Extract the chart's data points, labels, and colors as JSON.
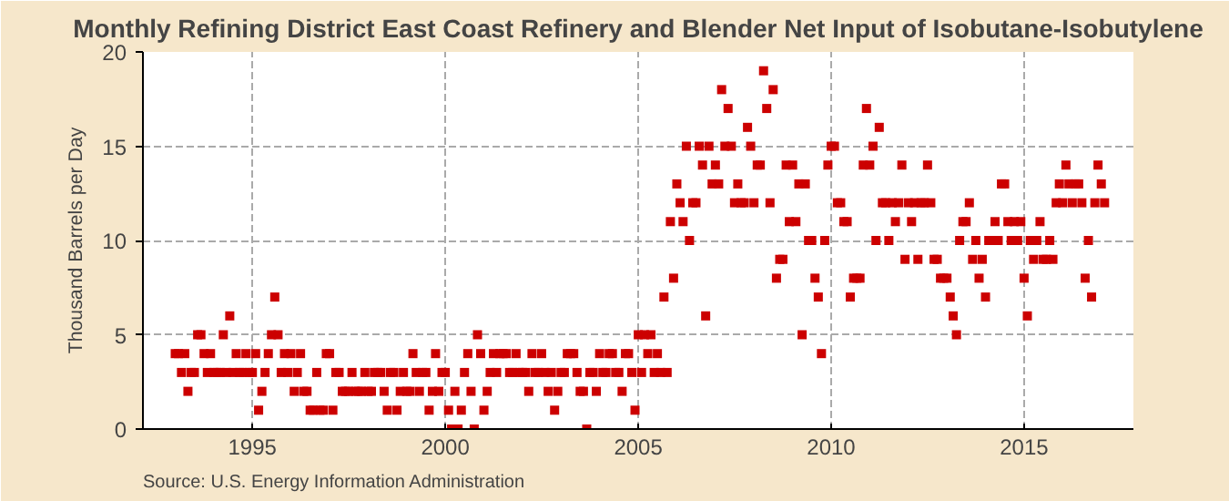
{
  "chart_data": {
    "type": "scatter",
    "title": "Monthly Refining District East Coast Refinery and Blender Net Input of Isobutane-Isobutylene",
    "ylabel": "Thousand Barrels per Day",
    "annotations": [
      "Source: U.S. Energy Information Administration"
    ],
    "x": [
      "1993-01",
      "1993-02",
      "1993-03",
      "1993-04",
      "1993-05",
      "1993-06",
      "1993-07",
      "1993-08",
      "1993-09",
      "1993-10",
      "1993-11",
      "1993-12",
      "1994-01",
      "1994-02",
      "1994-03",
      "1994-04",
      "1994-05",
      "1994-06",
      "1994-07",
      "1994-08",
      "1994-09",
      "1994-10",
      "1994-11",
      "1994-12",
      "1995-01",
      "1995-02",
      "1995-03",
      "1995-04",
      "1995-05",
      "1995-06",
      "1995-07",
      "1995-08",
      "1995-09",
      "1995-10",
      "1995-11",
      "1995-12",
      "1996-01",
      "1996-02",
      "1996-03",
      "1996-04",
      "1996-05",
      "1996-06",
      "1996-07",
      "1996-08",
      "1996-09",
      "1996-10",
      "1996-11",
      "1996-12",
      "1997-01",
      "1997-02",
      "1997-03",
      "1997-04",
      "1997-05",
      "1997-06",
      "1997-07",
      "1997-08",
      "1997-09",
      "1997-10",
      "1997-11",
      "1997-12",
      "1998-01",
      "1998-02",
      "1998-03",
      "1998-04",
      "1998-05",
      "1998-06",
      "1998-07",
      "1998-08",
      "1998-09",
      "1998-10",
      "1998-11",
      "1998-12",
      "1999-01",
      "1999-02",
      "1999-03",
      "1999-04",
      "1999-05",
      "1999-06",
      "1999-07",
      "1999-08",
      "1999-09",
      "1999-10",
      "1999-11",
      "1999-12",
      "2000-01",
      "2000-02",
      "2000-03",
      "2000-04",
      "2000-05",
      "2000-06",
      "2000-07",
      "2000-08",
      "2000-09",
      "2000-10",
      "2000-11",
      "2000-12",
      "2001-01",
      "2001-02",
      "2001-03",
      "2001-04",
      "2001-05",
      "2001-06",
      "2001-07",
      "2001-08",
      "2001-09",
      "2001-10",
      "2001-11",
      "2001-12",
      "2002-01",
      "2002-02",
      "2002-03",
      "2002-04",
      "2002-05",
      "2002-06",
      "2002-07",
      "2002-08",
      "2002-09",
      "2002-10",
      "2002-11",
      "2002-12",
      "2003-01",
      "2003-02",
      "2003-03",
      "2003-04",
      "2003-05",
      "2003-06",
      "2003-07",
      "2003-08",
      "2003-09",
      "2003-10",
      "2003-11",
      "2003-12",
      "2004-01",
      "2004-02",
      "2004-03",
      "2004-04",
      "2004-05",
      "2004-06",
      "2004-07",
      "2004-08",
      "2004-09",
      "2004-10",
      "2004-11",
      "2004-12",
      "2005-01",
      "2005-02",
      "2005-03",
      "2005-04",
      "2005-05",
      "2005-06",
      "2005-07",
      "2005-08",
      "2005-09",
      "2005-10",
      "2005-11",
      "2005-12",
      "2006-01",
      "2006-02",
      "2006-03",
      "2006-04",
      "2006-05",
      "2006-06",
      "2006-07",
      "2006-08",
      "2006-09",
      "2006-10",
      "2006-11",
      "2006-12",
      "2007-01",
      "2007-02",
      "2007-03",
      "2007-04",
      "2007-05",
      "2007-06",
      "2007-07",
      "2007-08",
      "2007-09",
      "2007-10",
      "2007-11",
      "2007-12",
      "2008-01",
      "2008-02",
      "2008-03",
      "2008-04",
      "2008-05",
      "2008-06",
      "2008-07",
      "2008-08",
      "2008-09",
      "2008-10",
      "2008-11",
      "2008-12",
      "2009-01",
      "2009-02",
      "2009-03",
      "2009-04",
      "2009-05",
      "2009-06",
      "2009-07",
      "2009-08",
      "2009-09",
      "2009-10",
      "2009-11",
      "2009-12",
      "2010-01",
      "2010-02",
      "2010-03",
      "2010-04",
      "2010-05",
      "2010-06",
      "2010-07",
      "2010-08",
      "2010-09",
      "2010-10",
      "2010-11",
      "2010-12",
      "2011-01",
      "2011-02",
      "2011-03",
      "2011-04",
      "2011-05",
      "2011-06",
      "2011-07",
      "2011-08",
      "2011-09",
      "2011-10",
      "2011-11",
      "2011-12",
      "2012-01",
      "2012-02",
      "2012-03",
      "2012-04",
      "2012-05",
      "2012-06",
      "2012-07",
      "2012-08",
      "2012-09",
      "2012-10",
      "2012-11",
      "2012-12",
      "2013-01",
      "2013-02",
      "2013-03",
      "2013-04",
      "2013-05",
      "2013-06",
      "2013-07",
      "2013-08",
      "2013-09",
      "2013-10",
      "2013-11",
      "2013-12",
      "2014-01",
      "2014-02",
      "2014-03",
      "2014-04",
      "2014-05",
      "2014-06",
      "2014-07",
      "2014-08",
      "2014-09",
      "2014-10",
      "2014-11",
      "2014-12",
      "2015-01",
      "2015-02",
      "2015-03",
      "2015-04",
      "2015-05",
      "2015-06",
      "2015-07",
      "2015-08",
      "2015-09",
      "2015-10",
      "2015-11",
      "2015-12",
      "2016-01",
      "2016-02",
      "2016-03",
      "2016-04",
      "2016-05",
      "2016-06",
      "2016-07",
      "2016-08",
      "2016-09",
      "2016-10",
      "2016-11",
      "2016-12",
      "2017-01",
      "2017-02"
    ],
    "series": [
      {
        "color": "#cc0000",
        "values": [
          4,
          4,
          3,
          4,
          2,
          3,
          3,
          5,
          5,
          4,
          3,
          4,
          3,
          3,
          3,
          5,
          3,
          6,
          3,
          4,
          3,
          3,
          4,
          3,
          3,
          4,
          1,
          2,
          3,
          4,
          5,
          7,
          5,
          3,
          4,
          3,
          4,
          2,
          3,
          4,
          2,
          2,
          1,
          1,
          3,
          1,
          1,
          4,
          4,
          1,
          3,
          3,
          2,
          2,
          2,
          3,
          2,
          2,
          2,
          3,
          2,
          2,
          3,
          3,
          3,
          2,
          1,
          3,
          3,
          1,
          2,
          3,
          2,
          2,
          4,
          3,
          2,
          3,
          3,
          1,
          2,
          4,
          2,
          3,
          3,
          1,
          0,
          2,
          0,
          1,
          3,
          4,
          2,
          0,
          5,
          4,
          1,
          2,
          3,
          4,
          3,
          4,
          4,
          4,
          3,
          3,
          4,
          3,
          3,
          3,
          2,
          4,
          3,
          3,
          4,
          3,
          2,
          3,
          1,
          2,
          3,
          3,
          4,
          4,
          4,
          3,
          2,
          2,
          0,
          3,
          3,
          2,
          4,
          3,
          3,
          4,
          4,
          3,
          3,
          2,
          4,
          4,
          3,
          1,
          5,
          3,
          5,
          4,
          5,
          3,
          4,
          3,
          7,
          3,
          11,
          8,
          13,
          12,
          11,
          15,
          10,
          12,
          12,
          15,
          14,
          6,
          15,
          13,
          14,
          13,
          18,
          15,
          17,
          15,
          12,
          13,
          12,
          12,
          16,
          15,
          12,
          14,
          14,
          19,
          17,
          12,
          18,
          8,
          9,
          9,
          14,
          11,
          14,
          11,
          13,
          5,
          13,
          10,
          10,
          8,
          7,
          4,
          10,
          14,
          15,
          15,
          12,
          12,
          11,
          11,
          7,
          8,
          8,
          8,
          14,
          17,
          14,
          15,
          10,
          16,
          12,
          12,
          10,
          12,
          11,
          12,
          14,
          9,
          12,
          11,
          12,
          9,
          12,
          12,
          14,
          12,
          9,
          9,
          8,
          8,
          8,
          7,
          6,
          5,
          10,
          11,
          11,
          12,
          9,
          10,
          8,
          9,
          7,
          10,
          10,
          11,
          10,
          13,
          13,
          11,
          10,
          11,
          10,
          11,
          8,
          6,
          10,
          9,
          10,
          11,
          9,
          9,
          10,
          9,
          12,
          13,
          12,
          14,
          13,
          12,
          13,
          13,
          12,
          8,
          10,
          7,
          12,
          14,
          13,
          12
        ]
      }
    ],
    "xlim": [
      "1992-03-01",
      "2017-11-01"
    ],
    "xticks": [
      {
        "value": "1995-01",
        "label": "1995"
      },
      {
        "value": "2000-01",
        "label": "2000"
      },
      {
        "value": "2005-01",
        "label": "2005"
      },
      {
        "value": "2010-01",
        "label": "2010"
      },
      {
        "value": "2015-01",
        "label": "2015"
      }
    ],
    "ylim": [
      0,
      20
    ],
    "yticks": [
      0,
      5,
      10,
      15,
      20
    ],
    "grid": true,
    "marker": "square"
  }
}
